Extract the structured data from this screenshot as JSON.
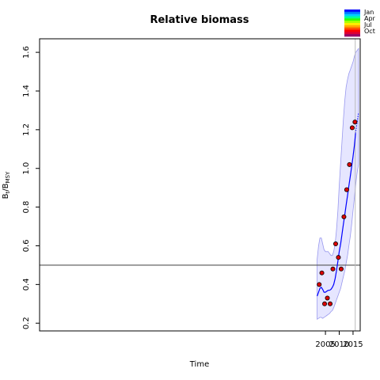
{
  "chart_data": {
    "type": "line",
    "title": "Relative biomass",
    "xlabel": "Time",
    "ylabel": "B_t/B_MSY",
    "ylabel_main": "B",
    "ylabel_sub1": "t",
    "ylabel_sep": "/B",
    "ylabel_sub2": "MSY",
    "xlim": [
      1901.4,
      2017.6
    ],
    "ylim": [
      0.16,
      1.67
    ],
    "xticks": [
      2005,
      2010,
      2015
    ],
    "xtick_labels": [
      "2005",
      "2010",
      "2015"
    ],
    "yticks": [
      0.2,
      0.4,
      0.6,
      0.8,
      1.0,
      1.2,
      1.4,
      1.6
    ],
    "ytick_labels": [
      "0.2",
      "0.4",
      "0.6",
      "0.8",
      "1.0",
      "1.2",
      "1.4",
      "1.6"
    ],
    "reference_line_y": 0.5,
    "vertical_line_x": 2015.8,
    "observations": {
      "x": [
        2002.75,
        2003.7,
        2004.7,
        2005.7,
        2006.7,
        2007.7,
        2008.7,
        2009.7,
        2010.7,
        2011.7,
        2012.7,
        2013.7,
        2014.7,
        2015.7
      ],
      "y": [
        0.4,
        0.46,
        0.3,
        0.33,
        0.3,
        0.48,
        0.61,
        0.54,
        0.48,
        0.75,
        0.89,
        1.02,
        1.21,
        1.24
      ]
    },
    "estimate": {
      "x": [
        2002.0,
        2002.5,
        2003.0,
        2003.5,
        2004.0,
        2004.5,
        2005.0,
        2005.5,
        2006.0,
        2006.5,
        2007.0,
        2007.5,
        2008.0,
        2008.5,
        2009.0,
        2009.5,
        2010.0,
        2010.5,
        2011.0,
        2011.5,
        2012.0,
        2012.5,
        2013.0,
        2013.5,
        2014.0,
        2014.5,
        2015.0,
        2015.5,
        2015.9
      ],
      "y": [
        0.34,
        0.36,
        0.38,
        0.385,
        0.375,
        0.36,
        0.36,
        0.365,
        0.37,
        0.37,
        0.375,
        0.385,
        0.4,
        0.43,
        0.47,
        0.52,
        0.57,
        0.61,
        0.66,
        0.71,
        0.76,
        0.81,
        0.86,
        0.91,
        0.96,
        1.01,
        1.06,
        1.12,
        1.18
      ]
    },
    "projection": {
      "x": [
        2015.9,
        2016.5,
        2017.0
      ],
      "y": [
        1.18,
        1.24,
        1.29
      ]
    },
    "ci_upper": {
      "x": [
        2002.0,
        2002.5,
        2003.0,
        2003.5,
        2004.0,
        2004.5,
        2005.0,
        2005.5,
        2006.0,
        2006.5,
        2007.0,
        2007.5,
        2008.0,
        2008.5,
        2009.0,
        2009.5,
        2010.0,
        2010.5,
        2011.0,
        2011.5,
        2012.0,
        2012.5,
        2013.0,
        2013.5,
        2014.0,
        2014.5,
        2015.0,
        2015.5,
        2016.0,
        2016.5,
        2017.0
      ],
      "y": [
        0.53,
        0.6,
        0.64,
        0.64,
        0.61,
        0.58,
        0.57,
        0.57,
        0.57,
        0.56,
        0.55,
        0.55,
        0.57,
        0.61,
        0.68,
        0.78,
        0.91,
        1.03,
        1.14,
        1.25,
        1.35,
        1.42,
        1.46,
        1.49,
        1.51,
        1.53,
        1.55,
        1.58,
        1.6,
        1.61,
        1.62
      ]
    },
    "ci_lower": {
      "x": [
        2002.0,
        2002.5,
        2003.0,
        2003.5,
        2004.0,
        2004.5,
        2005.0,
        2005.5,
        2006.0,
        2006.5,
        2007.0,
        2007.5,
        2008.0,
        2008.5,
        2009.0,
        2009.5,
        2010.0,
        2010.5,
        2011.0,
        2011.5,
        2012.0,
        2012.5,
        2013.0,
        2013.5,
        2014.0,
        2014.5,
        2015.0,
        2015.5,
        2016.0,
        2016.5,
        2017.0
      ],
      "y": [
        0.22,
        0.225,
        0.23,
        0.23,
        0.225,
        0.23,
        0.235,
        0.24,
        0.245,
        0.25,
        0.26,
        0.265,
        0.28,
        0.3,
        0.32,
        0.34,
        0.36,
        0.38,
        0.41,
        0.44,
        0.47,
        0.51,
        0.55,
        0.6,
        0.65,
        0.71,
        0.78,
        0.85,
        0.92,
        0.98,
        1.02
      ]
    },
    "legend": {
      "position": "top-right",
      "labels": [
        "Jan",
        "Apr",
        "Jul",
        "Oct"
      ],
      "colors": [
        "#0000ff",
        "#0077ff",
        "#00ccff",
        "#00ff99",
        "#33ff00",
        "#aaff00",
        "#ffee00",
        "#ffaa00",
        "#ff5500",
        "#ff0000",
        "#dd0033",
        "#990066"
      ]
    },
    "colors": {
      "estimate": "#0000ff",
      "ci_fill": "#e6e6ff",
      "ci_border": "#9999ee",
      "point_fill": "#dd0000",
      "reference_line": "#555555",
      "vertical_line": "#bbbbbb"
    },
    "grid": false
  }
}
